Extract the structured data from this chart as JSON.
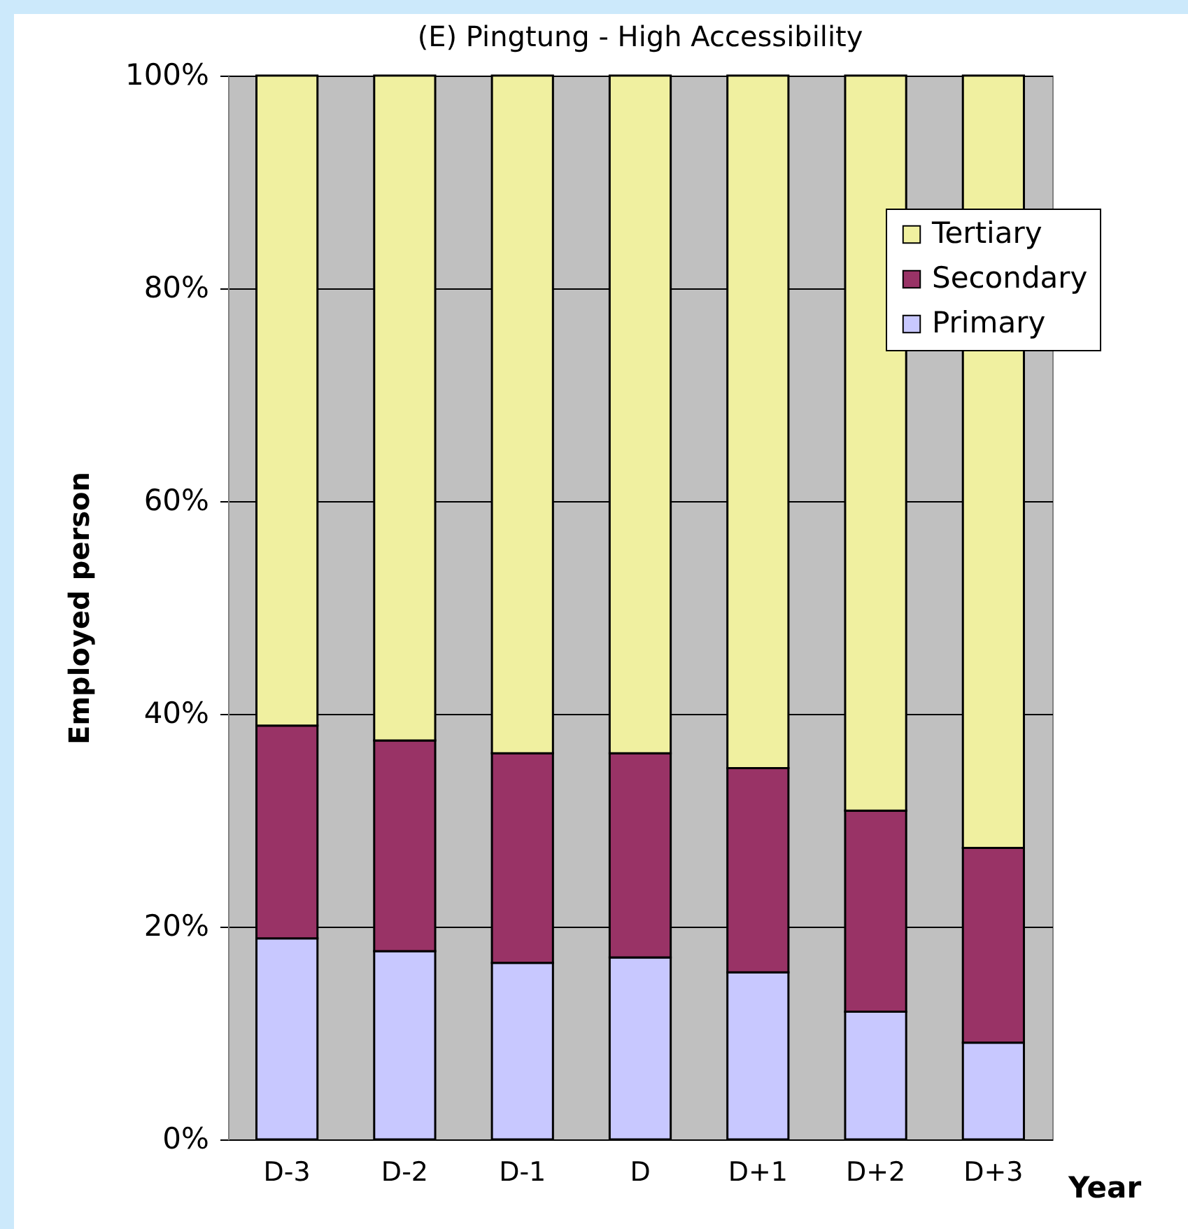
{
  "chart_data": {
    "type": "bar",
    "title": "(E) Pingtung - High Accessibility",
    "xlabel": "Year",
    "ylabel": "Employed person",
    "categories": [
      "D-3",
      "D-2",
      "D-1",
      "D",
      "D+1",
      "D+2",
      "D+3"
    ],
    "stacked": true,
    "series": [
      {
        "name": "Primary",
        "color": "#c8c8ff",
        "values": [
          18.9,
          17.7,
          16.6,
          17.1,
          15.7,
          12.0,
          9.1
        ]
      },
      {
        "name": "Secondary",
        "color": "#993366",
        "values": [
          20.0,
          19.8,
          19.7,
          19.2,
          19.2,
          18.9,
          18.3
        ]
      },
      {
        "name": "Tertiary",
        "color": "#f0f0a0",
        "values": [
          61.1,
          62.5,
          63.7,
          63.7,
          65.1,
          69.1,
          72.6
        ]
      }
    ],
    "ylim": [
      0,
      100
    ],
    "yticks": [
      {
        "value": 0,
        "label": "0%"
      },
      {
        "value": 20,
        "label": "20%"
      },
      {
        "value": 40,
        "label": "40%"
      },
      {
        "value": 60,
        "label": "60%"
      },
      {
        "value": 80,
        "label": "80%"
      },
      {
        "value": 100,
        "label": "100%"
      }
    ],
    "grid": "y",
    "legend": "right"
  }
}
